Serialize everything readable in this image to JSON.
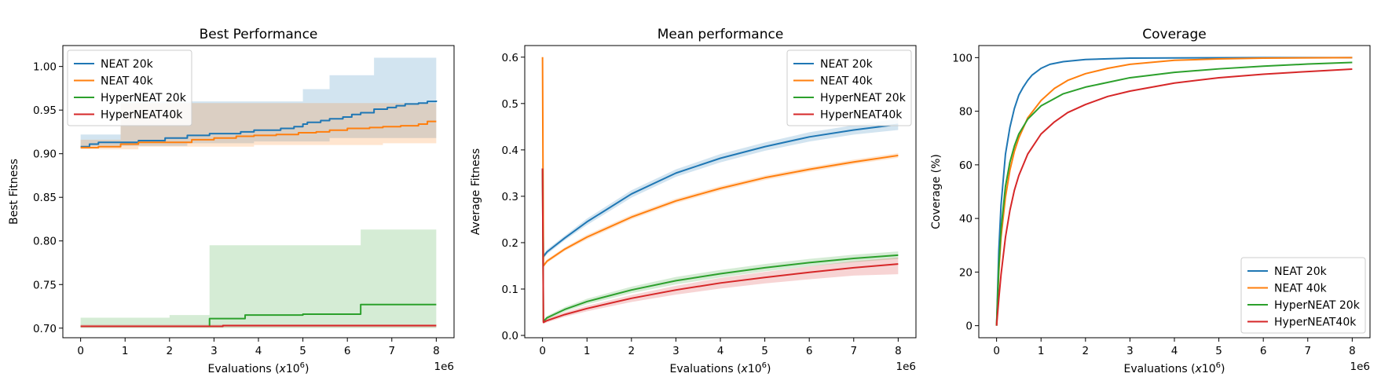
{
  "colors": {
    "NEAT 20k": "#1f77b4",
    "NEAT 40k": "#ff7f0e",
    "HyperNEAT 20k": "#2ca02c",
    "HyperNEAT40k": "#d62728"
  },
  "chart_data": [
    {
      "type": "line",
      "title": "Best Performance",
      "xlabel": "Evaluations (x10^6)",
      "ylabel": "Best Fitness",
      "x_offset_label": "1e6",
      "xlim": [
        -0.4,
        8.4
      ],
      "ylim": [
        0.689,
        1.024
      ],
      "xticks": [
        0,
        1,
        2,
        3,
        4,
        5,
        6,
        7,
        8
      ],
      "yticks": [
        0.7,
        0.75,
        0.8,
        0.85,
        0.9,
        0.95,
        1.0
      ],
      "ytick_labels": [
        "0.70",
        "0.75",
        "0.80",
        "0.85",
        "0.90",
        "0.95",
        "1.00"
      ],
      "legend": "upper-left",
      "step": true,
      "series": [
        {
          "name": "NEAT 20k",
          "x": [
            0,
            0.2,
            0.4,
            0.9,
            1.3,
            1.9,
            2.4,
            2.9,
            3.6,
            3.9,
            4.5,
            4.8,
            5.0,
            5.1,
            5.4,
            5.6,
            5.9,
            6.1,
            6.3,
            6.6,
            6.9,
            7.1,
            7.3,
            7.6,
            7.8,
            8.0
          ],
          "y": [
            0.908,
            0.911,
            0.913,
            0.913,
            0.915,
            0.918,
            0.921,
            0.923,
            0.925,
            0.927,
            0.929,
            0.931,
            0.934,
            0.936,
            0.938,
            0.94,
            0.942,
            0.945,
            0.947,
            0.951,
            0.953,
            0.955,
            0.957,
            0.958,
            0.96,
            0.961
          ],
          "lower": [
            0.906,
            0.909,
            0.909,
            0.909,
            0.909,
            0.909,
            0.912,
            0.912,
            0.912,
            0.914,
            0.914,
            0.914,
            0.914,
            0.914,
            0.914,
            0.918,
            0.918,
            0.918,
            0.918,
            0.918,
            0.918,
            0.918,
            0.918,
            0.918,
            0.918,
            0.918
          ],
          "upper": [
            0.922,
            0.922,
            0.922,
            0.96,
            0.96,
            0.96,
            0.96,
            0.96,
            0.96,
            0.96,
            0.96,
            0.96,
            0.974,
            0.974,
            0.974,
            0.99,
            0.99,
            0.99,
            0.99,
            1.01,
            1.01,
            1.01,
            1.01,
            1.01,
            1.01,
            1.01
          ]
        },
        {
          "name": "NEAT 40k",
          "x": [
            0,
            0.2,
            0.4,
            0.9,
            1.3,
            1.9,
            2.5,
            3.0,
            3.5,
            3.9,
            4.4,
            4.9,
            5.3,
            5.6,
            6.0,
            6.5,
            6.8,
            7.2,
            7.6,
            7.8,
            8.0
          ],
          "y": [
            0.907,
            0.907,
            0.908,
            0.911,
            0.913,
            0.913,
            0.916,
            0.918,
            0.92,
            0.921,
            0.922,
            0.924,
            0.925,
            0.927,
            0.929,
            0.93,
            0.931,
            0.932,
            0.934,
            0.937,
            0.937
          ],
          "lower": [
            0.905,
            0.905,
            0.905,
            0.905,
            0.908,
            0.908,
            0.908,
            0.908,
            0.908,
            0.91,
            0.91,
            0.91,
            0.91,
            0.91,
            0.91,
            0.91,
            0.912,
            0.912,
            0.912,
            0.912,
            0.912
          ],
          "upper": [
            0.916,
            0.916,
            0.916,
            0.958,
            0.958,
            0.958,
            0.958,
            0.958,
            0.958,
            0.958,
            0.958,
            0.958,
            0.958,
            0.958,
            0.958,
            0.958,
            0.958,
            0.958,
            0.958,
            0.958,
            0.958
          ]
        },
        {
          "name": "HyperNEAT 20k",
          "x": [
            0,
            1.0,
            2.0,
            2.9,
            3.7,
            4.5,
            5.0,
            5.3,
            6.3,
            8.0
          ],
          "y": [
            0.702,
            0.702,
            0.702,
            0.711,
            0.715,
            0.715,
            0.716,
            0.716,
            0.727,
            0.727
          ],
          "lower": [
            0.7,
            0.7,
            0.7,
            0.7,
            0.7,
            0.7,
            0.7,
            0.7,
            0.7,
            0.7
          ],
          "upper": [
            0.712,
            0.712,
            0.715,
            0.795,
            0.795,
            0.795,
            0.795,
            0.795,
            0.813,
            0.813
          ]
        },
        {
          "name": "HyperNEAT40k",
          "x": [
            0,
            1.9,
            3.2,
            8.0
          ],
          "y": [
            0.702,
            0.702,
            0.703,
            0.703
          ],
          "lower": [
            0.701,
            0.701,
            0.701,
            0.701
          ],
          "upper": [
            0.704,
            0.704,
            0.704,
            0.704
          ]
        }
      ]
    },
    {
      "type": "line",
      "title": "Mean performance",
      "xlabel": "Evaluations (x10^6)",
      "ylabel": "Average Fitness",
      "x_offset_label": "1e6",
      "xlim": [
        -0.4,
        8.4
      ],
      "ylim": [
        -0.005,
        0.625
      ],
      "xticks": [
        0,
        1,
        2,
        3,
        4,
        5,
        6,
        7,
        8
      ],
      "yticks": [
        0.0,
        0.1,
        0.2,
        0.3,
        0.4,
        0.5,
        0.6
      ],
      "ytick_labels": [
        "0.0",
        "0.1",
        "0.2",
        "0.3",
        "0.4",
        "0.5",
        "0.6"
      ],
      "legend": "upper-right",
      "step": false,
      "series": [
        {
          "name": "NEAT 20k",
          "x": [
            0,
            0.02,
            0.1,
            0.5,
            1,
            2,
            3,
            4,
            5,
            6,
            7,
            8
          ],
          "y": [
            0.36,
            0.17,
            0.18,
            0.21,
            0.245,
            0.305,
            0.35,
            0.382,
            0.407,
            0.428,
            0.443,
            0.455
          ],
          "lower": [
            0.35,
            0.165,
            0.175,
            0.205,
            0.238,
            0.297,
            0.342,
            0.373,
            0.398,
            0.418,
            0.433,
            0.443
          ],
          "upper": [
            0.37,
            0.175,
            0.185,
            0.215,
            0.252,
            0.313,
            0.358,
            0.391,
            0.416,
            0.438,
            0.453,
            0.467
          ]
        },
        {
          "name": "NEAT 40k",
          "x": [
            0,
            0.02,
            0.1,
            0.5,
            1,
            2,
            3,
            4,
            5,
            6,
            7,
            8
          ],
          "y": [
            0.6,
            0.15,
            0.16,
            0.186,
            0.212,
            0.255,
            0.29,
            0.317,
            0.34,
            0.358,
            0.374,
            0.388
          ],
          "lower": [
            0.595,
            0.146,
            0.156,
            0.182,
            0.207,
            0.25,
            0.285,
            0.312,
            0.335,
            0.353,
            0.369,
            0.383
          ],
          "upper": [
            0.605,
            0.154,
            0.164,
            0.19,
            0.217,
            0.26,
            0.295,
            0.322,
            0.345,
            0.363,
            0.379,
            0.393
          ]
        },
        {
          "name": "HyperNEAT 20k",
          "x": [
            0,
            0.02,
            0.1,
            0.5,
            1,
            2,
            3,
            4,
            5,
            6,
            7,
            8
          ],
          "y": [
            0.36,
            0.03,
            0.038,
            0.056,
            0.073,
            0.098,
            0.118,
            0.133,
            0.146,
            0.157,
            0.166,
            0.173
          ],
          "lower": [
            0.355,
            0.027,
            0.034,
            0.051,
            0.067,
            0.091,
            0.11,
            0.125,
            0.138,
            0.149,
            0.158,
            0.165
          ],
          "upper": [
            0.365,
            0.033,
            0.042,
            0.061,
            0.079,
            0.105,
            0.126,
            0.141,
            0.154,
            0.165,
            0.174,
            0.181
          ]
        },
        {
          "name": "HyperNEAT40k",
          "x": [
            0,
            0.02,
            0.1,
            0.5,
            1,
            2,
            3,
            4,
            5,
            6,
            7,
            8
          ],
          "y": [
            0.36,
            0.028,
            0.032,
            0.045,
            0.058,
            0.08,
            0.098,
            0.113,
            0.125,
            0.136,
            0.146,
            0.154
          ],
          "lower": [
            0.355,
            0.025,
            0.028,
            0.04,
            0.052,
            0.072,
            0.088,
            0.101,
            0.112,
            0.121,
            0.129,
            0.132
          ],
          "upper": [
            0.365,
            0.031,
            0.036,
            0.05,
            0.064,
            0.087,
            0.107,
            0.124,
            0.137,
            0.149,
            0.16,
            0.168
          ]
        }
      ]
    },
    {
      "type": "line",
      "title": "Coverage",
      "xlabel": "Evaluations (x10^6)",
      "ylabel": "Coverage (%)",
      "x_offset_label": "1e6",
      "xlim": [
        -0.4,
        8.4
      ],
      "ylim": [
        -4.5,
        104.5
      ],
      "xticks": [
        0,
        1,
        2,
        3,
        4,
        5,
        6,
        7,
        8
      ],
      "yticks": [
        0,
        20,
        40,
        60,
        80,
        100
      ],
      "ytick_labels": [
        "0",
        "20",
        "40",
        "60",
        "80",
        "100"
      ],
      "legend": "lower-right",
      "step": false,
      "series": [
        {
          "name": "NEAT 20k",
          "x": [
            0,
            0.05,
            0.1,
            0.2,
            0.3,
            0.4,
            0.5,
            0.6,
            0.7,
            0.8,
            1.0,
            1.2,
            1.5,
            2.0,
            3.0,
            4.0,
            6.0,
            8.0
          ],
          "y": [
            0,
            28,
            45,
            64,
            74,
            81,
            86,
            89,
            91.5,
            93.5,
            96,
            97.5,
            98.5,
            99.3,
            99.8,
            99.9,
            100,
            100
          ]
        },
        {
          "name": "NEAT 40k",
          "x": [
            0,
            0.05,
            0.1,
            0.2,
            0.3,
            0.4,
            0.5,
            0.7,
            1.0,
            1.3,
            1.6,
            2.0,
            2.5,
            3.0,
            4.0,
            5.0,
            6.0,
            8.0
          ],
          "y": [
            0,
            20,
            33,
            48,
            58,
            65,
            70,
            77.5,
            84,
            88.5,
            91.5,
            94,
            96,
            97.5,
            99,
            99.5,
            99.8,
            100
          ]
        },
        {
          "name": "HyperNEAT 20k",
          "x": [
            0,
            0.05,
            0.1,
            0.2,
            0.3,
            0.4,
            0.5,
            0.7,
            1.0,
            1.5,
            2.0,
            3.0,
            4.0,
            5.0,
            6.0,
            7.0,
            8.0
          ],
          "y": [
            0,
            22,
            36,
            52,
            61,
            67,
            71.5,
            77,
            82,
            86.5,
            89,
            92.5,
            94.5,
            95.8,
            96.8,
            97.6,
            98.2
          ]
        },
        {
          "name": "HyperNEAT40k",
          "x": [
            0,
            0.05,
            0.1,
            0.2,
            0.3,
            0.4,
            0.5,
            0.7,
            1.0,
            1.3,
            1.6,
            2.0,
            2.5,
            3.0,
            4.0,
            5.0,
            6.0,
            7.0,
            8.0
          ],
          "y": [
            0,
            10,
            19,
            33,
            43,
            50.5,
            56,
            64,
            71.5,
            76,
            79.5,
            82.5,
            85.5,
            87.5,
            90.5,
            92.5,
            93.8,
            94.8,
            95.7
          ]
        }
      ]
    }
  ]
}
